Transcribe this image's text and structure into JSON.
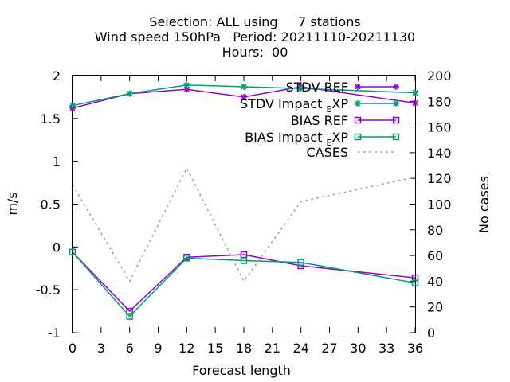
{
  "chart_data": {
    "type": "line",
    "title": [
      "Selection: ALL using     7 stations",
      "Wind speed 150hPa   Period: 20211110-20211130",
      "Hours:  00"
    ],
    "xlabel": "Forecast length",
    "ylabel": "m/s",
    "y2label": "No cases",
    "x": [
      0,
      6,
      12,
      18,
      24,
      36
    ],
    "xticks": [
      0,
      3,
      6,
      9,
      12,
      15,
      18,
      21,
      24,
      27,
      30,
      33,
      36
    ],
    "yticks": [
      "-1",
      "-0.5",
      "0",
      "0.5",
      "1",
      "1.5",
      "2"
    ],
    "y2ticks": [
      0,
      20,
      40,
      60,
      80,
      100,
      120,
      140,
      160,
      180,
      200
    ],
    "xlim": [
      0,
      36
    ],
    "ylim": [
      -1,
      2
    ],
    "y2lim": [
      0,
      200
    ],
    "grid": false,
    "legend_position": "top-right",
    "series": [
      {
        "name": "STDV REF",
        "axis": "y",
        "marker": "star",
        "dash": false,
        "color": "#9400d3",
        "values": [
          1.62,
          1.79,
          1.84,
          1.75,
          1.87,
          1.68
        ]
      },
      {
        "name": "STDV Impact_EXP",
        "legend_label": "STDV Impact",
        "legend_sub": "E",
        "legend_tail": "XP",
        "axis": "y",
        "marker": "star",
        "dash": false,
        "color": "#009e73",
        "values": [
          1.65,
          1.79,
          1.89,
          1.87,
          1.85,
          1.8
        ]
      },
      {
        "name": "BIAS REF",
        "axis": "y",
        "marker": "square",
        "dash": false,
        "color": "#9400d3",
        "values": [
          -0.06,
          -0.75,
          -0.12,
          -0.09,
          -0.22,
          -0.36
        ]
      },
      {
        "name": "BIAS Impact_EXP",
        "legend_label": "BIAS Impact",
        "legend_sub": "E",
        "legend_tail": "XP",
        "axis": "y",
        "marker": "square",
        "dash": false,
        "color": "#009e73",
        "values": [
          -0.06,
          -0.81,
          -0.13,
          -0.16,
          -0.18,
          -0.42
        ]
      },
      {
        "name": "CASES",
        "axis": "y2",
        "marker": "none",
        "dash": true,
        "color": "#a0a0a0",
        "values": [
          115,
          40,
          128,
          40,
          102,
          121
        ]
      }
    ]
  }
}
